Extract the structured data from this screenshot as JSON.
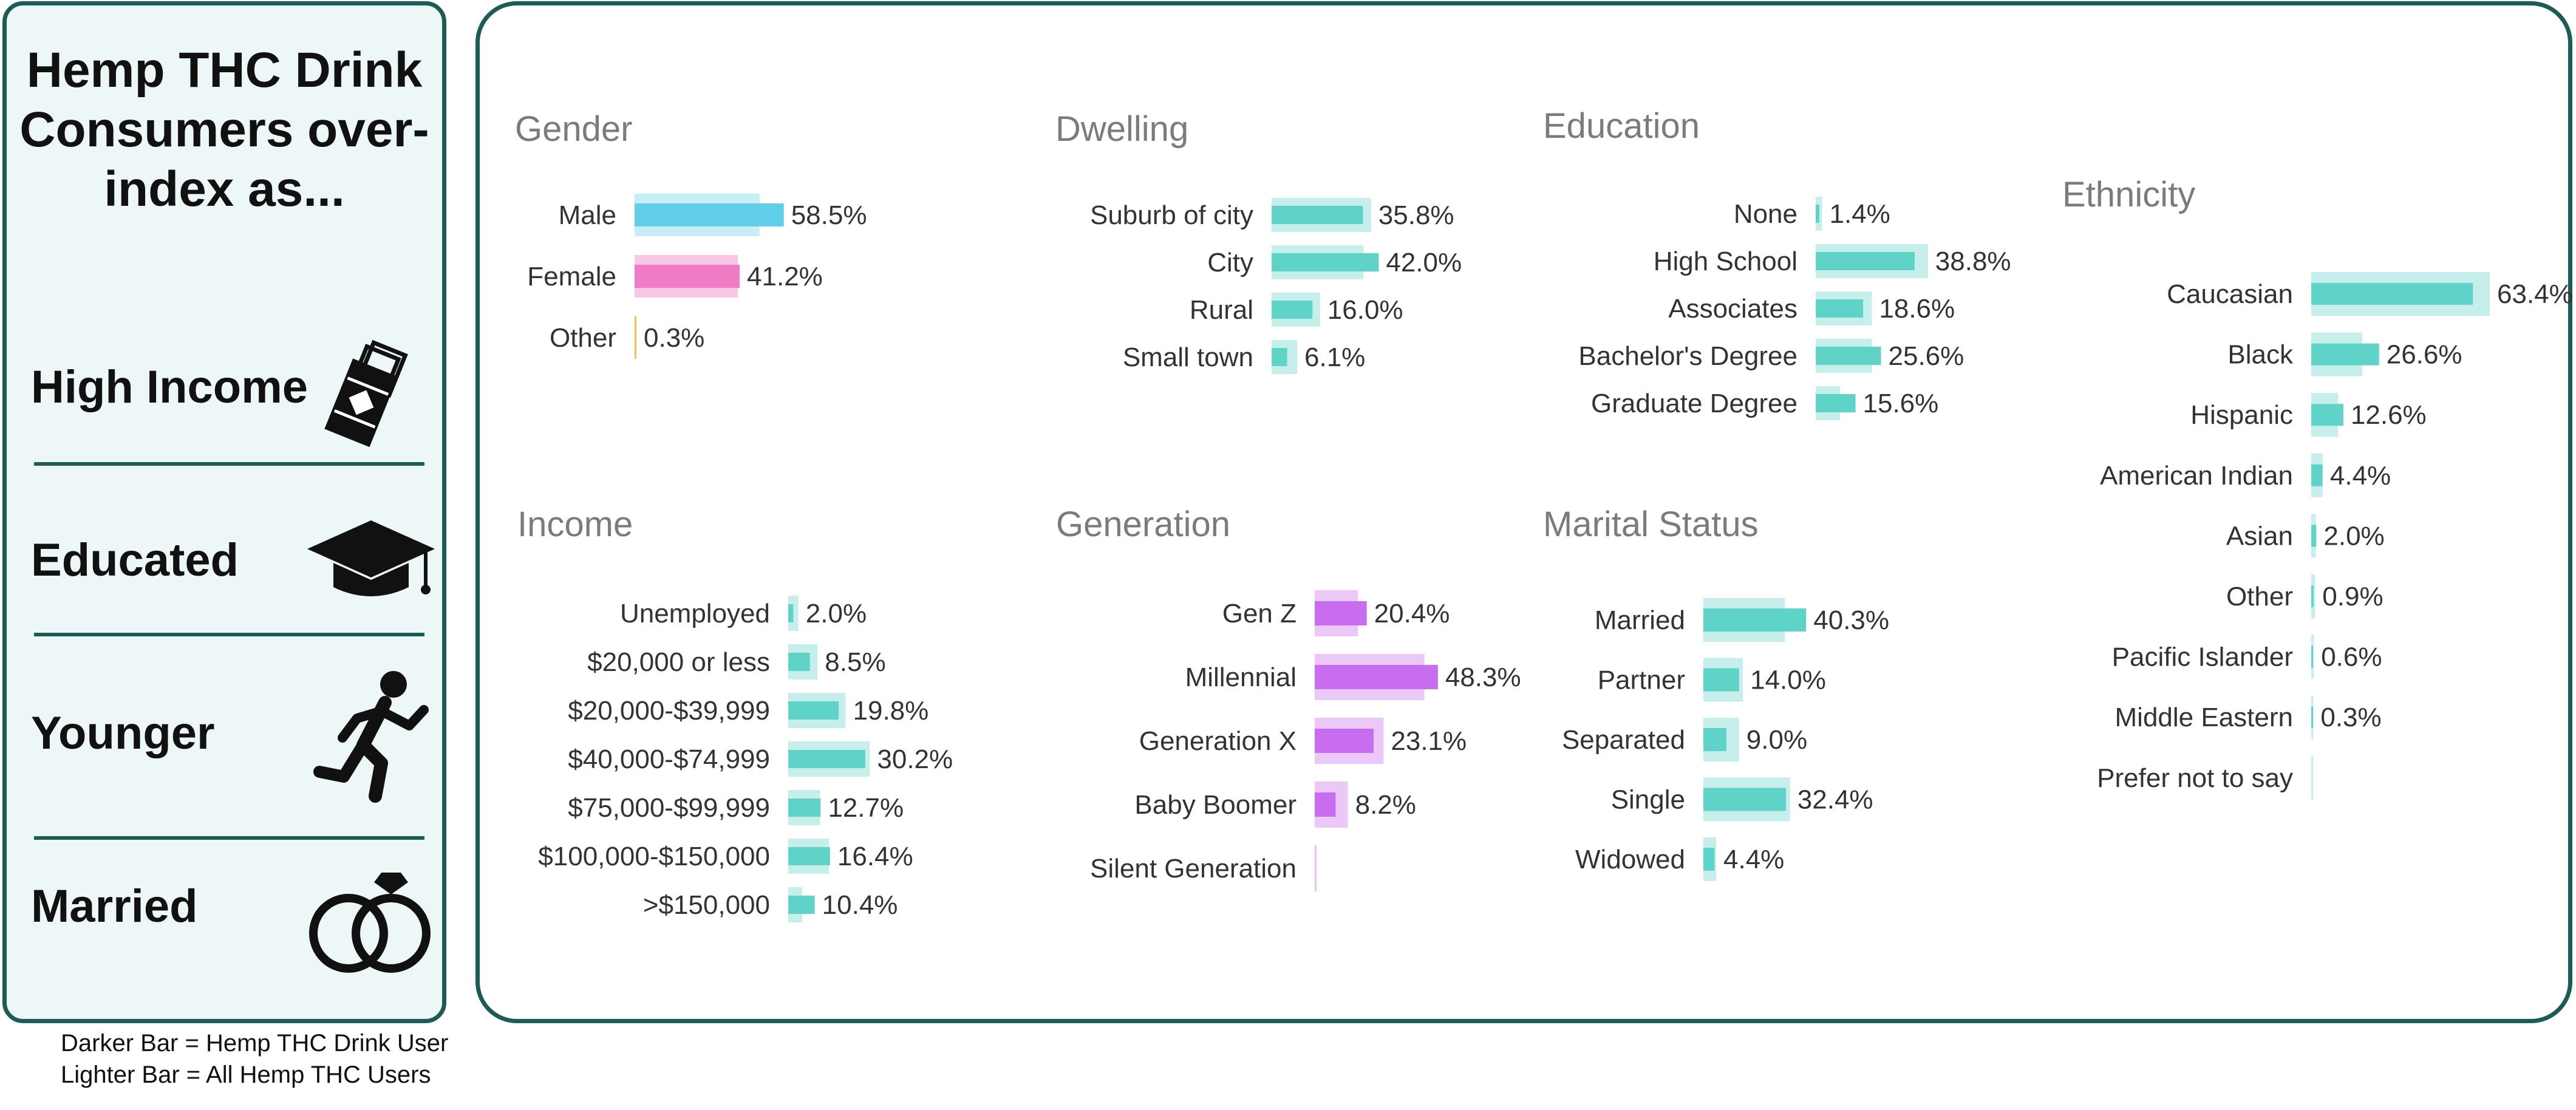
{
  "sidebar": {
    "title": "Hemp THC Drink Consumers over-index as...",
    "traits": [
      {
        "label": "High Income",
        "icon": "money-icon"
      },
      {
        "label": "Educated",
        "icon": "graduation-cap-icon"
      },
      {
        "label": "Younger",
        "icon": "running-person-icon"
      },
      {
        "label": "Married",
        "icon": "wedding-rings-icon"
      }
    ]
  },
  "legend_note": {
    "line1": "Darker Bar = Hemp THC Drink User",
    "line2": "Lighter Bar = All Hemp THC Users"
  },
  "colors": {
    "border": "#1c5c56",
    "sidebar_bg": "#eef7f8",
    "teal_dark": "#5fd3c8",
    "teal_light": "#c6efec",
    "blue_dark": "#62cfea",
    "blue_light": "#c5eef8",
    "pink_dark": "#f07cc6",
    "pink_light": "#f8c8e6",
    "yellow": "#f2c244",
    "purple_dark": "#c86cf0",
    "purple_light": "#ecc8f8"
  },
  "chart_data": [
    {
      "type": "bar",
      "title": "Gender",
      "categories": [
        "Male",
        "Female",
        "Other"
      ],
      "series": [
        {
          "name": "Hemp THC Drink User",
          "values": [
            58.5,
            41.2,
            0.3
          ]
        },
        {
          "name": "All Hemp THC Users",
          "values": [
            49.0,
            40.5,
            0.6
          ]
        }
      ],
      "labels": [
        "58.5%",
        "41.2%",
        "0.3%"
      ]
    },
    {
      "type": "bar",
      "title": "Dwelling",
      "categories": [
        "Suburb of city",
        "City",
        "Rural",
        "Small town"
      ],
      "series": [
        {
          "name": "Hemp THC Drink User",
          "values": [
            35.8,
            42.0,
            16.0,
            6.1
          ]
        },
        {
          "name": "All Hemp THC Users",
          "values": [
            39.0,
            36.0,
            19.0,
            10.0
          ]
        }
      ],
      "labels": [
        "35.8%",
        "42.0%",
        "16.0%",
        "6.1%"
      ]
    },
    {
      "type": "bar",
      "title": "Education",
      "categories": [
        "None",
        "High School",
        "Associates",
        "Bachelor's Degree",
        "Graduate Degree"
      ],
      "series": [
        {
          "name": "Hemp THC Drink User",
          "values": [
            1.4,
            38.8,
            18.6,
            25.6,
            15.6
          ]
        },
        {
          "name": "All Hemp THC Users",
          "values": [
            2.5,
            44.0,
            22.0,
            22.0,
            9.5
          ]
        }
      ],
      "labels": [
        "1.4%",
        "38.8%",
        "18.6%",
        "25.6%",
        "15.6%"
      ]
    },
    {
      "type": "bar",
      "title": "Ethnicity",
      "categories": [
        "Caucasian",
        "Black",
        "Hispanic",
        "American Indian",
        "Asian",
        "Other",
        "Pacific Islander",
        "Middle Eastern",
        "Prefer not to say"
      ],
      "series": [
        {
          "name": "Hemp THC Drink User",
          "values": [
            63.4,
            26.6,
            12.6,
            4.4,
            2.0,
            0.9,
            0.6,
            0.3,
            0
          ]
        },
        {
          "name": "All Hemp THC Users",
          "values": [
            70.0,
            20.0,
            10.5,
            4.5,
            1.8,
            1.5,
            1.0,
            0.8,
            0.6
          ]
        }
      ],
      "labels": [
        "63.4%",
        "26.6%",
        "12.6%",
        "4.4%",
        "2.0%",
        "0.9%",
        "0.6%",
        "0.3%",
        ""
      ]
    },
    {
      "type": "bar",
      "title": "Income",
      "categories": [
        "Unemployed",
        "$20,000 or less",
        "$20,000-$39,999",
        "$40,000-$74,999",
        "$75,000-$99,999",
        "$100,000-$150,000",
        ">$150,000"
      ],
      "series": [
        {
          "name": "Hemp THC Drink User",
          "values": [
            2.0,
            8.5,
            19.8,
            30.2,
            12.7,
            16.4,
            10.4
          ]
        },
        {
          "name": "All Hemp THC Users",
          "values": [
            4.0,
            11.5,
            22.5,
            32.0,
            12.5,
            16.0,
            5.5
          ]
        }
      ],
      "labels": [
        "2.0%",
        "8.5%",
        "19.8%",
        "30.2%",
        "12.7%",
        "16.4%",
        "10.4%"
      ]
    },
    {
      "type": "bar",
      "title": "Generation",
      "categories": [
        "Gen Z",
        "Millennial",
        "Generation X",
        "Baby Boomer",
        "Silent Generation"
      ],
      "series": [
        {
          "name": "Hemp THC Drink User",
          "values": [
            20.4,
            48.3,
            23.1,
            8.2,
            0
          ]
        },
        {
          "name": "All Hemp THC Users",
          "values": [
            17.0,
            43.0,
            27.0,
            13.0,
            0.8
          ]
        }
      ],
      "labels": [
        "20.4%",
        "48.3%",
        "23.1%",
        "8.2%",
        ""
      ]
    },
    {
      "type": "bar",
      "title": "Marital Status",
      "categories": [
        "Married",
        "Partner",
        "Separated",
        "Single",
        "Widowed"
      ],
      "series": [
        {
          "name": "Hemp THC Drink User",
          "values": [
            40.3,
            14.0,
            9.0,
            32.4,
            4.4
          ]
        },
        {
          "name": "All Hemp THC Users",
          "values": [
            32.0,
            15.5,
            14.0,
            34.0,
            5.0
          ]
        }
      ],
      "labels": [
        "40.3%",
        "14.0%",
        "9.0%",
        "32.4%",
        "4.4%"
      ]
    }
  ]
}
